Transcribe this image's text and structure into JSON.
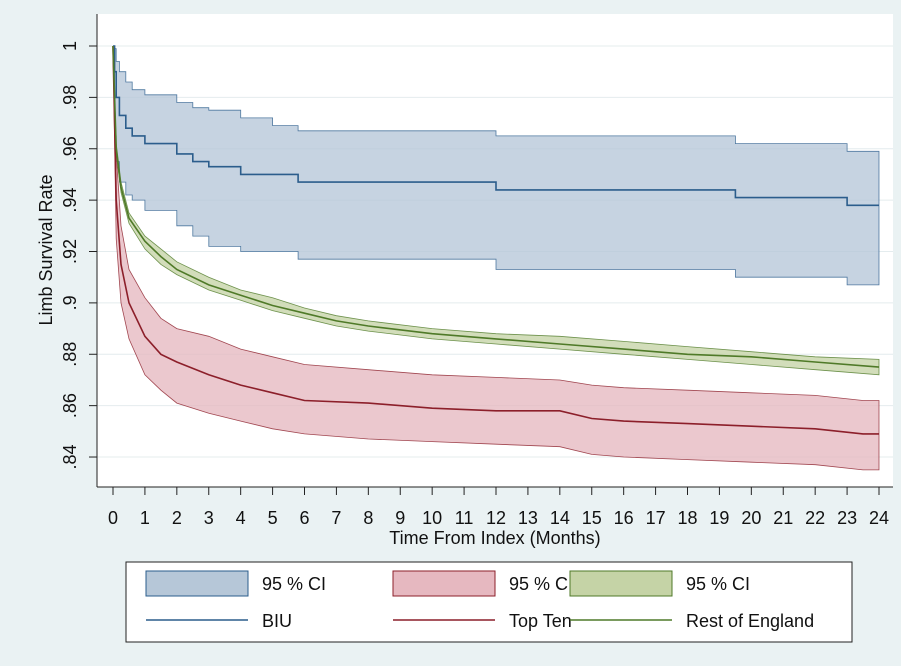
{
  "chart_data": {
    "type": "line",
    "xlabel": "Time From Index (Months)",
    "ylabel": "Limb Survival Rate",
    "xlim": [
      0,
      24
    ],
    "ylim": [
      0.833,
      1.0
    ],
    "x_ticks": [
      "0",
      "1",
      "2",
      "3",
      "4",
      "5",
      "6",
      "7",
      "8",
      "9",
      "10",
      "11",
      "12",
      "13",
      "14",
      "15",
      "16",
      "17",
      "18",
      "19",
      "20",
      "21",
      "22",
      "23",
      "24"
    ],
    "y_ticks": [
      {
        "value": 1.0,
        "label": "1"
      },
      {
        "value": 0.98,
        "label": ".98"
      },
      {
        "value": 0.96,
        "label": ".96"
      },
      {
        "value": 0.94,
        "label": ".94"
      },
      {
        "value": 0.92,
        "label": ".92"
      },
      {
        "value": 0.9,
        "label": ".9"
      },
      {
        "value": 0.88,
        "label": ".88"
      },
      {
        "value": 0.86,
        "label": ".86"
      },
      {
        "value": 0.84,
        "label": ".84"
      }
    ],
    "grid": true,
    "legend_position": "bottom",
    "legend": [
      {
        "label": "95 % CI",
        "kind": "band",
        "series": "BIU"
      },
      {
        "label": "95 % CI",
        "kind": "band",
        "series": "Top Ten"
      },
      {
        "label": "95 % CI",
        "kind": "band",
        "series": "Rest of England"
      },
      {
        "label": "BIU",
        "kind": "line",
        "series": "BIU"
      },
      {
        "label": "Top Ten",
        "kind": "line",
        "series": "Top Ten"
      },
      {
        "label": "Rest of England",
        "kind": "line",
        "series": "Rest of England"
      }
    ],
    "series": [
      {
        "name": "BIU",
        "line_color": "#2b5d8c",
        "band_fill": "#b6c7d8",
        "band_stroke": "#2b5d8c",
        "step": true,
        "x": [
          0,
          0.05,
          0.1,
          0.2,
          0.4,
          0.6,
          1.0,
          2.0,
          2.5,
          3.0,
          4.0,
          5.0,
          5.8,
          12.0,
          19.5,
          23.0,
          24.0
        ],
        "y": [
          1.0,
          0.99,
          0.98,
          0.973,
          0.968,
          0.965,
          0.962,
          0.958,
          0.955,
          0.953,
          0.95,
          0.95,
          0.947,
          0.944,
          0.941,
          0.938,
          0.938
        ],
        "lower": [
          1.0,
          0.965,
          0.955,
          0.947,
          0.942,
          0.94,
          0.936,
          0.93,
          0.926,
          0.922,
          0.92,
          0.92,
          0.917,
          0.913,
          0.91,
          0.907,
          0.907
        ],
        "upper": [
          1.0,
          0.999,
          0.994,
          0.99,
          0.986,
          0.983,
          0.981,
          0.978,
          0.976,
          0.975,
          0.972,
          0.969,
          0.967,
          0.965,
          0.962,
          0.959,
          0.959
        ]
      },
      {
        "name": "Top Ten",
        "line_color": "#8c1f2a",
        "band_fill": "#e6b8c0",
        "band_stroke": "#8c1f2a",
        "step": false,
        "x": [
          0,
          0.1,
          0.25,
          0.5,
          1.0,
          1.5,
          2.0,
          3.0,
          4.0,
          5.0,
          6.0,
          8.0,
          10.0,
          12.0,
          14.0,
          15.0,
          16.0,
          18.0,
          20.0,
          22.0,
          23.5,
          24.0
        ],
        "y": [
          1.0,
          0.94,
          0.915,
          0.9,
          0.887,
          0.88,
          0.877,
          0.872,
          0.868,
          0.865,
          0.862,
          0.861,
          0.859,
          0.858,
          0.858,
          0.855,
          0.854,
          0.853,
          0.852,
          0.851,
          0.849,
          0.849
        ],
        "lower": [
          1.0,
          0.925,
          0.9,
          0.886,
          0.872,
          0.866,
          0.861,
          0.857,
          0.854,
          0.851,
          0.849,
          0.847,
          0.846,
          0.845,
          0.844,
          0.841,
          0.84,
          0.839,
          0.838,
          0.837,
          0.835,
          0.835
        ],
        "upper": [
          1.0,
          0.958,
          0.93,
          0.913,
          0.902,
          0.894,
          0.89,
          0.887,
          0.882,
          0.879,
          0.876,
          0.874,
          0.872,
          0.871,
          0.87,
          0.868,
          0.867,
          0.866,
          0.865,
          0.864,
          0.862,
          0.862
        ]
      },
      {
        "name": "Rest of England",
        "line_color": "#4f7a28",
        "band_fill": "#c5d3a6",
        "band_stroke": "#4f7a28",
        "step": false,
        "x": [
          0,
          0.1,
          0.25,
          0.5,
          1.0,
          1.5,
          2.0,
          3.0,
          4.0,
          5.0,
          6.0,
          7.0,
          8.0,
          10.0,
          12.0,
          14.0,
          16.0,
          18.0,
          20.0,
          22.0,
          24.0
        ],
        "y": [
          1.0,
          0.96,
          0.945,
          0.933,
          0.924,
          0.918,
          0.913,
          0.907,
          0.903,
          0.899,
          0.896,
          0.893,
          0.891,
          0.888,
          0.886,
          0.884,
          0.882,
          0.88,
          0.879,
          0.877,
          0.875
        ],
        "lower": [
          1.0,
          0.958,
          0.943,
          0.931,
          0.921,
          0.915,
          0.911,
          0.905,
          0.901,
          0.897,
          0.894,
          0.891,
          0.889,
          0.886,
          0.884,
          0.882,
          0.88,
          0.878,
          0.876,
          0.874,
          0.872
        ],
        "upper": [
          1.0,
          0.962,
          0.947,
          0.935,
          0.926,
          0.921,
          0.916,
          0.91,
          0.905,
          0.902,
          0.898,
          0.895,
          0.893,
          0.89,
          0.888,
          0.887,
          0.885,
          0.883,
          0.881,
          0.879,
          0.878
        ]
      }
    ]
  }
}
